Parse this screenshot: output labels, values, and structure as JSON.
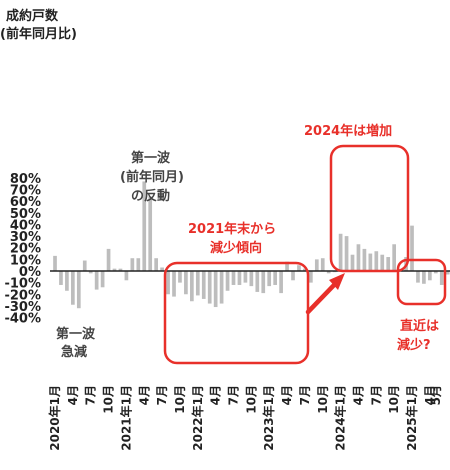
{
  "chart_data": {
    "type": "bar",
    "ylabel_lines": [
      "成約戸数",
      "(前年同月比)"
    ],
    "yticks": [
      "80%",
      "70%",
      "60%",
      "50%",
      "40%",
      "30%",
      "20%",
      "10%",
      "0%",
      "-10%",
      "-20%",
      "-30%",
      "-40%"
    ],
    "ylim": [
      -40,
      80
    ],
    "x_tick_labels": [
      {
        "index": 0,
        "label": "2020年1月"
      },
      {
        "index": 3,
        "label": "4月"
      },
      {
        "index": 6,
        "label": "7月"
      },
      {
        "index": 9,
        "label": "10月"
      },
      {
        "index": 12,
        "label": "2021年1月"
      },
      {
        "index": 15,
        "label": "4月"
      },
      {
        "index": 18,
        "label": "7月"
      },
      {
        "index": 21,
        "label": "10月"
      },
      {
        "index": 24,
        "label": "2022年1月"
      },
      {
        "index": 27,
        "label": "4月"
      },
      {
        "index": 30,
        "label": "7月"
      },
      {
        "index": 33,
        "label": "10月"
      },
      {
        "index": 36,
        "label": "2023年1月"
      },
      {
        "index": 39,
        "label": "4月"
      },
      {
        "index": 42,
        "label": "7月"
      },
      {
        "index": 45,
        "label": "10月"
      },
      {
        "index": 48,
        "label": "2024年1月"
      },
      {
        "index": 51,
        "label": "4月"
      },
      {
        "index": 54,
        "label": "7月"
      },
      {
        "index": 57,
        "label": "10月"
      },
      {
        "index": 60,
        "label": "2025年1月"
      },
      {
        "index": 63,
        "label": "4月"
      },
      {
        "index": 64,
        "label": "5月"
      }
    ],
    "values": [
      13,
      -12,
      -17,
      -29,
      -32,
      9,
      -2,
      -16,
      -14,
      19,
      2,
      2,
      -8,
      11,
      11,
      77,
      64,
      11,
      3,
      -20,
      -22,
      -10,
      -20,
      -26,
      -21,
      -24,
      -28,
      -31,
      -28,
      -17,
      -12,
      -12,
      -10,
      -13,
      -18,
      -19,
      -13,
      -12,
      -19,
      8,
      -8,
      5,
      2,
      -10,
      10,
      11,
      -2,
      -1,
      32,
      30,
      14,
      23,
      19,
      15,
      17,
      14,
      12,
      23,
      0,
      12,
      39,
      -10,
      -11,
      -8,
      -2,
      -12,
      -3
    ],
    "bar_color": "#bdbdbd",
    "accent_color": "#e8302a",
    "annotations": {
      "wave1_drop": [
        "第一波",
        "急減"
      ],
      "wave1_rebound": [
        "第一波",
        "(前年同月)",
        "の反動"
      ],
      "decline_2021": [
        "2021年末から",
        "減少傾向"
      ],
      "increase_2024": "2024年は増加",
      "recent": [
        "直近は",
        "減少?"
      ]
    }
  }
}
